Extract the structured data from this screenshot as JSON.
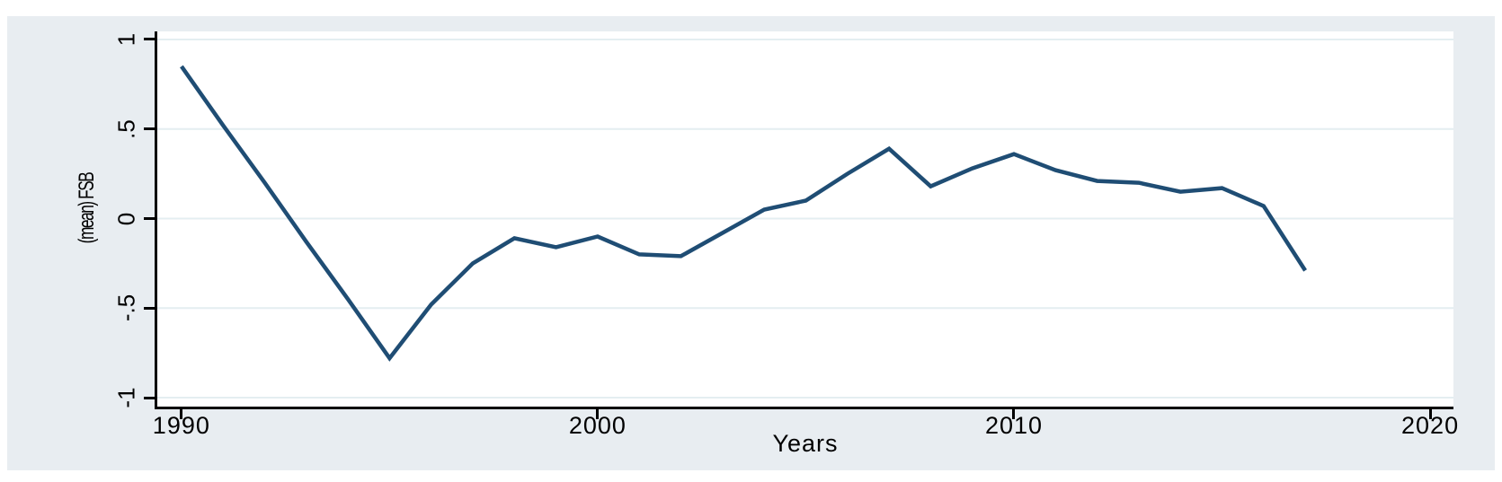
{
  "figure": {
    "panel_background": "#e8edf1",
    "plot_background": "#ffffff",
    "axis_color": "#000000",
    "grid_color": "#e4eef1",
    "line_color": "#1f4d74"
  },
  "chart_data": {
    "type": "line",
    "title": "",
    "xlabel": "Years",
    "ylabel": "(mean) FSB",
    "legend": "none",
    "grid": "horizontal",
    "xlim": [
      1989.42,
      2020.56
    ],
    "ylim": [
      -1.05,
      1.045
    ],
    "x": [
      1990,
      1991,
      1992,
      1993,
      1994,
      1995,
      1996,
      1997,
      1998,
      1999,
      2000,
      2001,
      2002,
      2003,
      2004,
      2005,
      2006,
      2007,
      2008,
      2009,
      2010,
      2011,
      2012,
      2013,
      2014,
      2015,
      2016,
      2017
    ],
    "y": [
      0.85,
      0.52,
      0.2,
      -0.13,
      -0.45,
      -0.78,
      -0.48,
      -0.25,
      -0.11,
      -0.16,
      -0.1,
      -0.2,
      -0.21,
      -0.08,
      0.05,
      0.1,
      0.25,
      0.39,
      0.18,
      0.28,
      0.36,
      0.27,
      0.21,
      0.2,
      0.15,
      0.17,
      0.07,
      -0.29
    ],
    "x_ticks": [
      {
        "value": 1990,
        "label": "1990"
      },
      {
        "value": 2000,
        "label": "2000"
      },
      {
        "value": 2010,
        "label": "2010"
      },
      {
        "value": 2020,
        "label": "2020"
      }
    ],
    "y_ticks": [
      {
        "value": 1,
        "label": "1"
      },
      {
        "value": 0.5,
        "label": ".5"
      },
      {
        "value": 0,
        "label": "0"
      },
      {
        "value": -0.5,
        "label": "-.5"
      },
      {
        "value": -1,
        "label": "-1"
      }
    ]
  }
}
